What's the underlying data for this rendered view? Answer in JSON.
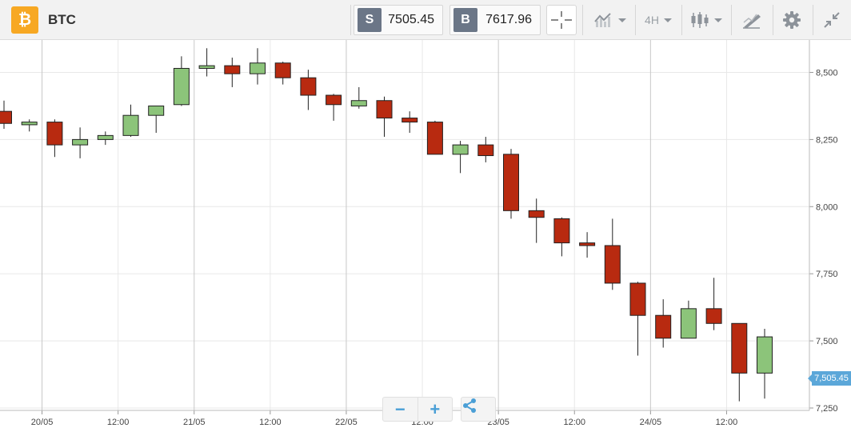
{
  "header": {
    "coin_symbol_glyph": "₿",
    "symbol": "BTC",
    "sell": {
      "tag": "S",
      "value": "7505.45"
    },
    "buy": {
      "tag": "B",
      "value": "7617.96"
    },
    "timeframe": "4H",
    "icons": [
      "bitcoin-icon",
      "crosshair-icon",
      "line-chart-icon",
      "candlestick-icon",
      "drawing-tools-icon",
      "gear-icon",
      "collapse-icon"
    ]
  },
  "controls": {
    "zoom_out": "−",
    "zoom_in": "+"
  },
  "chart_data": {
    "type": "candlestick",
    "colors": {
      "up": "#8cc47a",
      "down": "#b82a10",
      "grid": "#e8e8e8",
      "vline": "#c8c8c8",
      "current": "#5ba7d9"
    },
    "ylim": [
      7250,
      8600
    ],
    "yticks": [
      7250,
      7500,
      7750,
      8000,
      8250,
      8500
    ],
    "ytick_labels": [
      "7,250",
      "7,500",
      "7,750",
      "8,000",
      "8,250",
      "8,500"
    ],
    "xtick_labels": [
      "20/05",
      "12:00",
      "21/05",
      "12:00",
      "22/05",
      "12:00",
      "23/05",
      "12:00",
      "24/05",
      "12:00"
    ],
    "day_boundaries": [
      "20/05",
      "21/05",
      "22/05",
      "23/05",
      "24/05"
    ],
    "current_price": 7505.45,
    "current_price_label": "7,505.45",
    "candles": [
      {
        "o": 8355,
        "h": 8395,
        "l": 8290,
        "c": 8310
      },
      {
        "o": 8305,
        "h": 8325,
        "l": 8280,
        "c": 8315
      },
      {
        "o": 8315,
        "h": 8325,
        "l": 8185,
        "c": 8230
      },
      {
        "o": 8230,
        "h": 8295,
        "l": 8180,
        "c": 8250
      },
      {
        "o": 8250,
        "h": 8280,
        "l": 8230,
        "c": 8265
      },
      {
        "o": 8265,
        "h": 8380,
        "l": 8260,
        "c": 8340
      },
      {
        "o": 8340,
        "h": 8375,
        "l": 8275,
        "c": 8375
      },
      {
        "o": 8380,
        "h": 8560,
        "l": 8375,
        "c": 8515
      },
      {
        "o": 8515,
        "h": 8590,
        "l": 8485,
        "c": 8525
      },
      {
        "o": 8525,
        "h": 8555,
        "l": 8445,
        "c": 8495
      },
      {
        "o": 8495,
        "h": 8590,
        "l": 8455,
        "c": 8535
      },
      {
        "o": 8535,
        "h": 8540,
        "l": 8455,
        "c": 8480
      },
      {
        "o": 8480,
        "h": 8510,
        "l": 8360,
        "c": 8415
      },
      {
        "o": 8415,
        "h": 8420,
        "l": 8320,
        "c": 8380
      },
      {
        "o": 8375,
        "h": 8445,
        "l": 8365,
        "c": 8395
      },
      {
        "o": 8395,
        "h": 8410,
        "l": 8260,
        "c": 8330
      },
      {
        "o": 8330,
        "h": 8355,
        "l": 8275,
        "c": 8315
      },
      {
        "o": 8315,
        "h": 8320,
        "l": 8195,
        "c": 8195
      },
      {
        "o": 8195,
        "h": 8245,
        "l": 8125,
        "c": 8230
      },
      {
        "o": 8230,
        "h": 8260,
        "l": 8165,
        "c": 8190
      },
      {
        "o": 8195,
        "h": 8215,
        "l": 7955,
        "c": 7985
      },
      {
        "o": 7985,
        "h": 8030,
        "l": 7865,
        "c": 7960
      },
      {
        "o": 7955,
        "h": 7960,
        "l": 7815,
        "c": 7865
      },
      {
        "o": 7865,
        "h": 7905,
        "l": 7810,
        "c": 7855
      },
      {
        "o": 7855,
        "h": 7955,
        "l": 7690,
        "c": 7715
      },
      {
        "o": 7715,
        "h": 7720,
        "l": 7445,
        "c": 7595
      },
      {
        "o": 7595,
        "h": 7655,
        "l": 7475,
        "c": 7510
      },
      {
        "o": 7510,
        "h": 7650,
        "l": 7510,
        "c": 7620
      },
      {
        "o": 7620,
        "h": 7735,
        "l": 7540,
        "c": 7565
      },
      {
        "o": 7565,
        "h": 7565,
        "l": 7275,
        "c": 7380
      },
      {
        "o": 7380,
        "h": 7545,
        "l": 7285,
        "c": 7515
      }
    ]
  }
}
